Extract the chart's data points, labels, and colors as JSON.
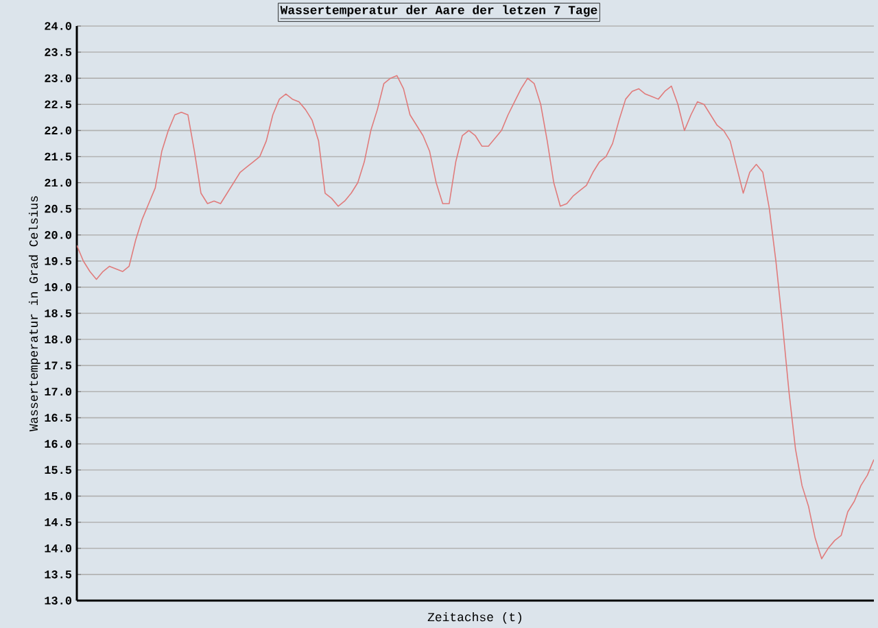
{
  "chart_data": {
    "type": "line",
    "title": "Wassertemperatur der Aare der letzen 7 Tage",
    "xlabel": "Zeitachse (t)",
    "ylabel": "Wassertemperatur in Grad Celsius",
    "categories": [
      null,
      null,
      null,
      null,
      null,
      null,
      null,
      null,
      null,
      null,
      null,
      null,
      null,
      null,
      null,
      null,
      null,
      null,
      null,
      null,
      null,
      null,
      null,
      null,
      null,
      null,
      null,
      null,
      null,
      null,
      null,
      null,
      null,
      null,
      null,
      null,
      null,
      null,
      null,
      null,
      null,
      null,
      null,
      null,
      null,
      null,
      null,
      null,
      null,
      null,
      null,
      null,
      null,
      null,
      null,
      null,
      null,
      null,
      null,
      null,
      null,
      null,
      null,
      null,
      null,
      null,
      null,
      null,
      null,
      null,
      null,
      null,
      null,
      null,
      null,
      null,
      null,
      null,
      null,
      null,
      null,
      null,
      null,
      null,
      null,
      null,
      null,
      null,
      null,
      null,
      null,
      null,
      null,
      null,
      null,
      null,
      null,
      null,
      null,
      null,
      null,
      null,
      null,
      null,
      null,
      null,
      null,
      null,
      null,
      null,
      null,
      null,
      null,
      null,
      null,
      null,
      null,
      null,
      null,
      null,
      null,
      null,
      null
    ],
    "values": [
      19.8,
      19.5,
      19.3,
      19.15,
      19.3,
      19.4,
      19.35,
      19.3,
      19.4,
      19.9,
      20.3,
      20.6,
      20.9,
      21.6,
      22.0,
      22.3,
      22.35,
      22.3,
      21.6,
      20.8,
      20.6,
      20.65,
      20.6,
      20.8,
      21.0,
      21.2,
      21.3,
      21.4,
      21.5,
      21.8,
      22.3,
      22.6,
      22.7,
      22.6,
      22.55,
      22.4,
      22.2,
      21.8,
      20.8,
      20.7,
      20.55,
      20.65,
      20.8,
      21.0,
      21.4,
      22.0,
      22.4,
      22.9,
      23.0,
      23.05,
      22.8,
      22.3,
      22.1,
      21.9,
      21.6,
      21.0,
      20.6,
      20.6,
      21.4,
      21.9,
      22.0,
      21.9,
      21.7,
      21.7,
      21.85,
      22.0,
      22.3,
      22.55,
      22.8,
      23.0,
      22.9,
      22.5,
      21.8,
      21.0,
      20.55,
      20.6,
      20.75,
      20.85,
      20.95,
      21.2,
      21.4,
      21.5,
      21.75,
      22.2,
      22.6,
      22.75,
      22.8,
      22.7,
      22.65,
      22.6,
      22.75,
      22.85,
      22.5,
      22.0,
      22.3,
      22.55,
      22.5,
      22.3,
      22.1,
      22.0,
      21.8,
      21.3,
      20.8,
      21.2,
      21.35,
      21.2,
      20.5,
      19.5,
      18.3,
      17.0,
      15.9,
      15.2,
      14.8,
      14.2,
      13.8,
      14.0,
      14.15,
      14.25,
      14.7,
      14.9,
      15.2,
      15.4,
      15.7
    ],
    "color": "#e07b7b",
    "ylim": [
      13,
      24
    ],
    "yticks": [
      {
        "value": 13,
        "label": "13.0"
      },
      {
        "value": 13.5,
        "label": "13.5"
      },
      {
        "value": 14,
        "label": "14.0"
      },
      {
        "value": 14.5,
        "label": "14.5"
      },
      {
        "value": 15,
        "label": "15.0"
      },
      {
        "value": 15.5,
        "label": "15.5"
      },
      {
        "value": 16,
        "label": "16.0"
      },
      {
        "value": 16.5,
        "label": "16.5"
      },
      {
        "value": 17,
        "label": "17.0"
      },
      {
        "value": 17.5,
        "label": "17.5"
      },
      {
        "value": 18,
        "label": "18.0"
      },
      {
        "value": 18.5,
        "label": "18.5"
      },
      {
        "value": 19,
        "label": "19.0"
      },
      {
        "value": 19.5,
        "label": "19.5"
      },
      {
        "value": 20,
        "label": "20.0"
      },
      {
        "value": 20.5,
        "label": "20.5"
      },
      {
        "value": 21,
        "label": "21.0"
      },
      {
        "value": 21.5,
        "label": "21.5"
      },
      {
        "value": 22,
        "label": "22.0"
      },
      {
        "value": 22.5,
        "label": "22.5"
      },
      {
        "value": 23,
        "label": "23.0"
      },
      {
        "value": 23.5,
        "label": "23.5"
      },
      {
        "value": 24,
        "label": "24.0"
      }
    ],
    "grid": "y",
    "tick_labels": "y",
    "marker": "none",
    "line_style": "solid"
  }
}
